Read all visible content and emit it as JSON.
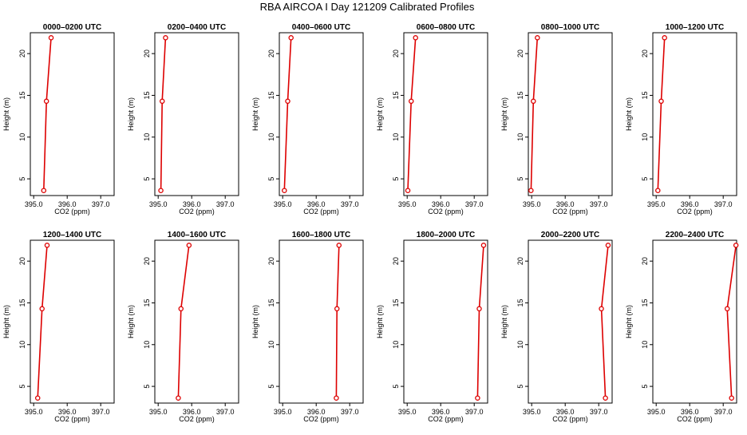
{
  "figure": {
    "title": "RBA AIRCOA I  Day 121209  Calibrated Profiles"
  },
  "chart_data": [
    {
      "type": "line",
      "title": "0000–0200 UTC",
      "xlabel": "CO2 (ppm)",
      "ylabel": "Height (m)",
      "xlim": [
        394.9,
        397.4
      ],
      "ylim": [
        3,
        22.5
      ],
      "xticks": [
        395.0,
        396.0,
        397.0
      ],
      "yticks": [
        5,
        10,
        15,
        20
      ],
      "series": [
        {
          "x": [
            395.3,
            395.38,
            395.52
          ],
          "y": [
            3.6,
            14.3,
            21.9
          ],
          "color": "#dd0000"
        }
      ]
    },
    {
      "type": "line",
      "title": "0200–0400 UTC",
      "xlabel": "CO2 (ppm)",
      "ylabel": "Height (m)",
      "xlim": [
        394.9,
        397.4
      ],
      "ylim": [
        3,
        22.5
      ],
      "xticks": [
        395.0,
        396.0,
        397.0
      ],
      "yticks": [
        5,
        10,
        15,
        20
      ],
      "series": [
        {
          "x": [
            395.08,
            395.12,
            395.22
          ],
          "y": [
            3.6,
            14.3,
            21.9
          ],
          "color": "#dd0000"
        }
      ]
    },
    {
      "type": "line",
      "title": "0400–0600 UTC",
      "xlabel": "CO2 (ppm)",
      "ylabel": "Height (m)",
      "xlim": [
        394.9,
        397.4
      ],
      "ylim": [
        3,
        22.5
      ],
      "xticks": [
        395.0,
        396.0,
        397.0
      ],
      "yticks": [
        5,
        10,
        15,
        20
      ],
      "series": [
        {
          "x": [
            395.05,
            395.15,
            395.25
          ],
          "y": [
            3.6,
            14.3,
            21.9
          ],
          "color": "#dd0000"
        }
      ]
    },
    {
      "type": "line",
      "title": "0600–0800 UTC",
      "xlabel": "CO2 (ppm)",
      "ylabel": "Height (m)",
      "xlim": [
        394.9,
        397.4
      ],
      "ylim": [
        3,
        22.5
      ],
      "xticks": [
        395.0,
        396.0,
        397.0
      ],
      "yticks": [
        5,
        10,
        15,
        20
      ],
      "series": [
        {
          "x": [
            395.02,
            395.12,
            395.25
          ],
          "y": [
            3.6,
            14.3,
            21.9
          ],
          "color": "#dd0000"
        }
      ]
    },
    {
      "type": "line",
      "title": "0800–1000 UTC",
      "xlabel": "CO2 (ppm)",
      "ylabel": "Height (m)",
      "xlim": [
        394.9,
        397.4
      ],
      "ylim": [
        3,
        22.5
      ],
      "xticks": [
        395.0,
        396.0,
        397.0
      ],
      "yticks": [
        5,
        10,
        15,
        20
      ],
      "series": [
        {
          "x": [
            394.98,
            395.05,
            395.17
          ],
          "y": [
            3.6,
            14.3,
            21.9
          ],
          "color": "#dd0000"
        }
      ]
    },
    {
      "type": "line",
      "title": "1000–1200 UTC",
      "xlabel": "CO2 (ppm)",
      "ylabel": "Height (m)",
      "xlim": [
        394.9,
        397.4
      ],
      "ylim": [
        3,
        22.5
      ],
      "xticks": [
        395.0,
        396.0,
        397.0
      ],
      "yticks": [
        5,
        10,
        15,
        20
      ],
      "series": [
        {
          "x": [
            395.05,
            395.15,
            395.25
          ],
          "y": [
            3.6,
            14.3,
            21.9
          ],
          "color": "#dd0000"
        }
      ]
    },
    {
      "type": "line",
      "title": "1200–1400 UTC",
      "xlabel": "CO2 (ppm)",
      "ylabel": "Height (m)",
      "xlim": [
        394.9,
        397.4
      ],
      "ylim": [
        3,
        22.5
      ],
      "xticks": [
        395.0,
        396.0,
        397.0
      ],
      "yticks": [
        5,
        10,
        15,
        20
      ],
      "series": [
        {
          "x": [
            395.12,
            395.25,
            395.4
          ],
          "y": [
            3.6,
            14.3,
            21.9
          ],
          "color": "#dd0000"
        }
      ]
    },
    {
      "type": "line",
      "title": "1400–1600 UTC",
      "xlabel": "CO2 (ppm)",
      "ylabel": "Height (m)",
      "xlim": [
        394.9,
        397.4
      ],
      "ylim": [
        3,
        22.5
      ],
      "xticks": [
        395.0,
        396.0,
        397.0
      ],
      "yticks": [
        5,
        10,
        15,
        20
      ],
      "series": [
        {
          "x": [
            395.6,
            395.68,
            395.92
          ],
          "y": [
            3.6,
            14.3,
            21.9
          ],
          "color": "#dd0000"
        }
      ]
    },
    {
      "type": "line",
      "title": "1600–1800 UTC",
      "xlabel": "CO2 (ppm)",
      "ylabel": "Height (m)",
      "xlim": [
        394.9,
        397.4
      ],
      "ylim": [
        3,
        22.5
      ],
      "xticks": [
        395.0,
        396.0,
        397.0
      ],
      "yticks": [
        5,
        10,
        15,
        20
      ],
      "series": [
        {
          "x": [
            396.6,
            396.62,
            396.68
          ],
          "y": [
            3.6,
            14.3,
            21.9
          ],
          "color": "#dd0000"
        }
      ]
    },
    {
      "type": "line",
      "title": "1800–2000 UTC",
      "xlabel": "CO2 (ppm)",
      "ylabel": "Height (m)",
      "xlim": [
        394.9,
        397.4
      ],
      "ylim": [
        3,
        22.5
      ],
      "xticks": [
        395.0,
        396.0,
        397.0
      ],
      "yticks": [
        5,
        10,
        15,
        20
      ],
      "series": [
        {
          "x": [
            397.1,
            397.15,
            397.28
          ],
          "y": [
            3.6,
            14.3,
            21.9
          ],
          "color": "#dd0000"
        }
      ]
    },
    {
      "type": "line",
      "title": "2000–2200 UTC",
      "xlabel": "CO2 (ppm)",
      "ylabel": "Height (m)",
      "xlim": [
        394.9,
        397.4
      ],
      "ylim": [
        3,
        22.5
      ],
      "xticks": [
        395.0,
        396.0,
        397.0
      ],
      "yticks": [
        5,
        10,
        15,
        20
      ],
      "series": [
        {
          "x": [
            397.2,
            397.08,
            397.28
          ],
          "y": [
            3.6,
            14.3,
            21.9
          ],
          "color": "#dd0000"
        }
      ]
    },
    {
      "type": "line",
      "title": "2200–2400 UTC",
      "xlabel": "CO2 (ppm)",
      "ylabel": "Height (m)",
      "xlim": [
        394.9,
        397.4
      ],
      "ylim": [
        3,
        22.5
      ],
      "xticks": [
        395.0,
        396.0,
        397.0
      ],
      "yticks": [
        5,
        10,
        15,
        20
      ],
      "series": [
        {
          "x": [
            397.25,
            397.12,
            397.38
          ],
          "y": [
            3.6,
            14.3,
            21.9
          ],
          "color": "#dd0000"
        }
      ]
    }
  ]
}
